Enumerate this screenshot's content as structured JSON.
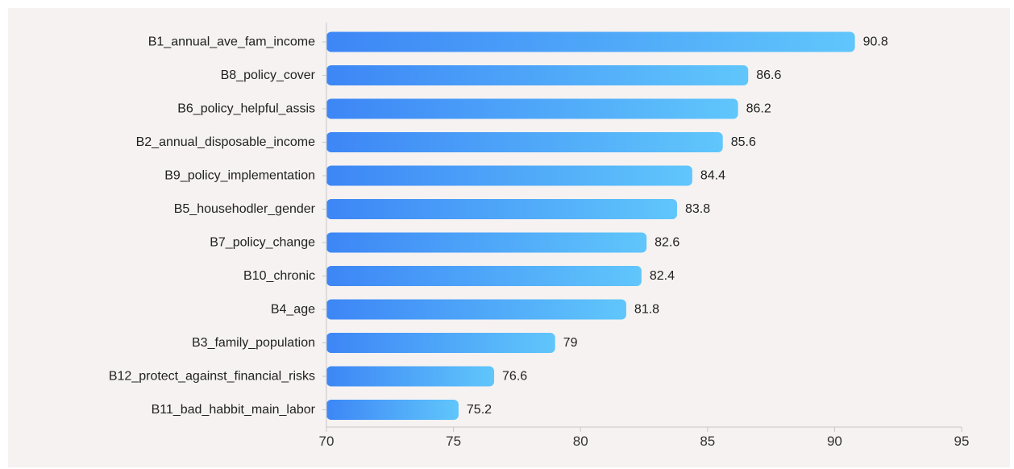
{
  "chart_data": {
    "type": "bar",
    "orientation": "horizontal",
    "title": "",
    "xlabel": "",
    "ylabel": "",
    "categories": [
      "B1_annual_ave_fam_income",
      "B8_policy_cover",
      "B6_policy_helpful_assis",
      "B2_annual_disposable_income",
      "B9_policy_implementation",
      "B5_househodler_gender",
      "B7_policy_change",
      "B10_chronic",
      "B4_age",
      "B3_family_population",
      "B12_protect_against_financial_risks",
      "B11_bad_habbit_main_labor"
    ],
    "values": [
      90.8,
      86.6,
      86.2,
      85.6,
      84.4,
      83.8,
      82.6,
      82.4,
      81.8,
      79,
      76.6,
      75.2
    ],
    "value_labels": [
      "90.8",
      "86.6",
      "86.2",
      "85.6",
      "84.4",
      "83.8",
      "82.6",
      "82.4",
      "81.8",
      "79",
      "76.6",
      "75.2"
    ],
    "xlim": [
      70,
      95
    ],
    "x_ticks": [
      70,
      75,
      80,
      85,
      90,
      95
    ],
    "x_tick_labels": [
      "70",
      "75",
      "80",
      "85",
      "90",
      "95"
    ],
    "grid": false,
    "legend": "none",
    "colors": {
      "bar_gradient_start": "#3d86f6",
      "bar_gradient_end": "#60c6fb",
      "background": "#f5f2f1",
      "axis": "#c8c8c8"
    }
  }
}
